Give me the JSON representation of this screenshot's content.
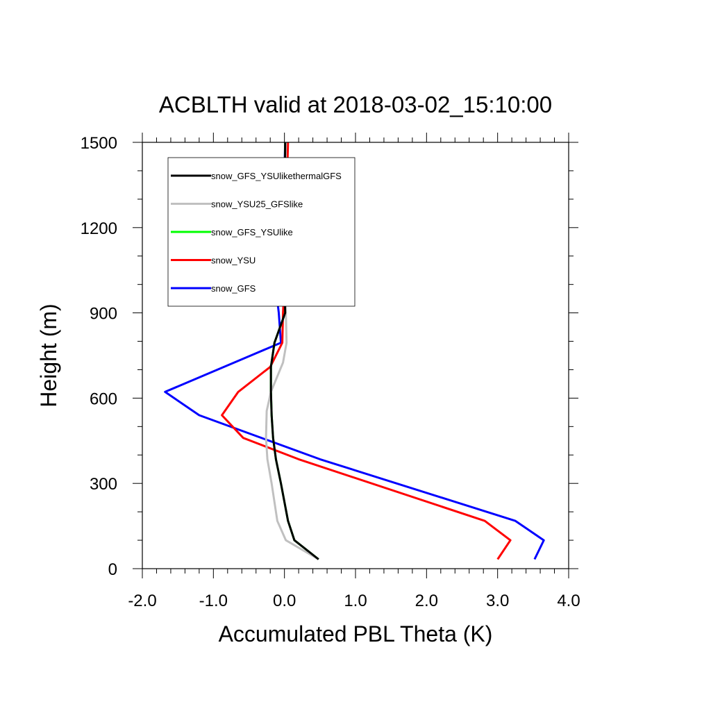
{
  "chart_data": {
    "type": "line",
    "title": "ACBLTH valid at 2018-03-02_15:10:00",
    "xlabel": "Accumulated PBL Theta (K)",
    "ylabel": "Height (m)",
    "xlim": [
      -2.0,
      4.0
    ],
    "ylim": [
      0,
      1500
    ],
    "xticks": [
      "-2.0",
      "-1.0",
      "0.0",
      "1.0",
      "2.0",
      "3.0",
      "4.0"
    ],
    "xtick_values": [
      -2,
      -1,
      0,
      1,
      2,
      3,
      4
    ],
    "yticks": [
      "0",
      "300",
      "600",
      "900",
      "1200",
      "1500"
    ],
    "ytick_values": [
      0,
      300,
      600,
      900,
      1200,
      1500
    ],
    "grid": false,
    "legend_position": "top-left",
    "series": [
      {
        "name": "snow_GFS",
        "color": "#0000ff",
        "points": [
          [
            3.52,
            33
          ],
          [
            3.65,
            100
          ],
          [
            3.25,
            168
          ],
          [
            0.5,
            385
          ],
          [
            -1.2,
            540
          ],
          [
            -1.68,
            622
          ],
          [
            -0.05,
            795
          ],
          [
            -0.08,
            900
          ],
          [
            -0.12,
            985
          ],
          [
            -0.05,
            1100
          ],
          [
            -0.03,
            1200
          ],
          [
            -0.01,
            1300
          ],
          [
            0.0,
            1400
          ],
          [
            0.01,
            1500
          ]
        ]
      },
      {
        "name": "snow_YSU",
        "color": "#ff0000",
        "points": [
          [
            3.0,
            33
          ],
          [
            3.18,
            100
          ],
          [
            2.82,
            168
          ],
          [
            0.2,
            385
          ],
          [
            -0.58,
            460
          ],
          [
            -0.88,
            540
          ],
          [
            -0.65,
            622
          ],
          [
            -0.2,
            710
          ],
          [
            -0.03,
            795
          ],
          [
            -0.02,
            900
          ],
          [
            0.0,
            1000
          ],
          [
            0.02,
            1200
          ],
          [
            0.03,
            1300
          ],
          [
            0.05,
            1500
          ]
        ]
      },
      {
        "name": "snow_GFS_YSUlike",
        "color": "#00ff00",
        "points": [
          [
            0.48,
            33
          ],
          [
            0.14,
            100
          ],
          [
            0.05,
            168
          ],
          [
            -0.05,
            300
          ],
          [
            -0.12,
            385
          ],
          [
            -0.16,
            460
          ],
          [
            -0.18,
            540
          ],
          [
            -0.19,
            622
          ],
          [
            -0.19,
            710
          ],
          [
            -0.14,
            795
          ],
          [
            0.01,
            900
          ],
          [
            0.0,
            1000
          ],
          [
            0.0,
            1200
          ],
          [
            0.01,
            1500
          ]
        ]
      },
      {
        "name": "snow_YSU25_GFSlike",
        "color": "#c0c0c0",
        "points": [
          [
            0.48,
            33
          ],
          [
            0.02,
            100
          ],
          [
            -0.1,
            168
          ],
          [
            -0.18,
            300
          ],
          [
            -0.24,
            385
          ],
          [
            -0.26,
            460
          ],
          [
            -0.25,
            555
          ],
          [
            -0.19,
            622
          ],
          [
            -0.02,
            725
          ],
          [
            0.03,
            795
          ],
          [
            0.02,
            900
          ],
          [
            0.01,
            1000
          ],
          [
            0.01,
            1200
          ],
          [
            0.02,
            1500
          ]
        ]
      },
      {
        "name": "snow_GFS_YSUlikethermalGFS",
        "color": "#000000",
        "points": [
          [
            0.48,
            33
          ],
          [
            0.14,
            100
          ],
          [
            0.05,
            168
          ],
          [
            -0.05,
            300
          ],
          [
            -0.12,
            385
          ],
          [
            -0.16,
            460
          ],
          [
            -0.18,
            540
          ],
          [
            -0.19,
            622
          ],
          [
            -0.19,
            710
          ],
          [
            -0.14,
            795
          ],
          [
            0.01,
            900
          ],
          [
            0.0,
            1000
          ],
          [
            0.0,
            1200
          ],
          [
            0.01,
            1500
          ]
        ]
      }
    ],
    "legend": [
      {
        "label": "snow_GFS_YSUlikethermalGFS",
        "color": "#000000"
      },
      {
        "label": "snow_YSU25_GFSlike",
        "color": "#c0c0c0"
      },
      {
        "label": "snow_GFS_YSUlike",
        "color": "#00ff00"
      },
      {
        "label": "snow_YSU",
        "color": "#ff0000"
      },
      {
        "label": "snow_GFS",
        "color": "#0000ff"
      }
    ]
  }
}
